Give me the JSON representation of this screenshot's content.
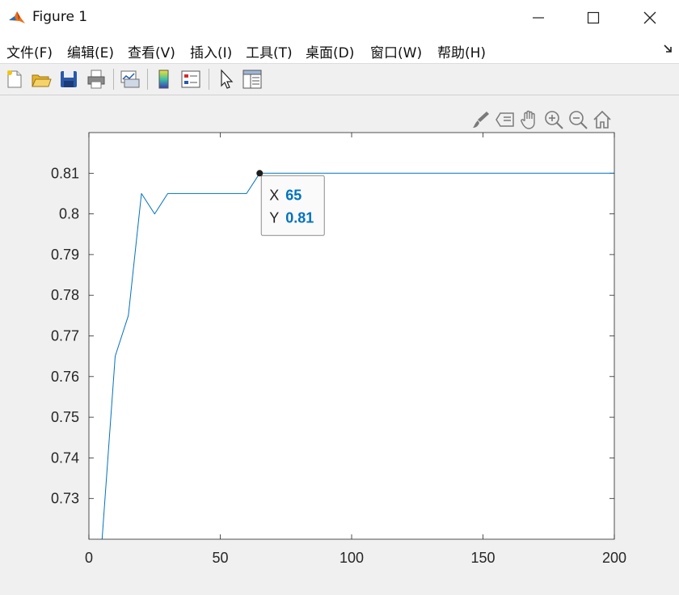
{
  "window": {
    "title": "Figure 1"
  },
  "menu": {
    "items": [
      {
        "label": "文件(F)"
      },
      {
        "label": "编辑(E)"
      },
      {
        "label": "查看(V)"
      },
      {
        "label": "插入(I)"
      },
      {
        "label": "工具(T)"
      },
      {
        "label": "桌面(D)"
      },
      {
        "label": "窗口(W)"
      },
      {
        "label": "帮助(H)"
      }
    ]
  },
  "toolbar": {
    "icons": [
      "new-figure-icon",
      "open-file-icon",
      "save-icon",
      "print-icon",
      "link-plot-icon",
      "insert-colorbar-icon",
      "insert-legend-icon",
      "edit-plot-arrow-icon",
      "property-inspector-icon"
    ]
  },
  "axes_toolbar": {
    "icons": [
      "brush-icon",
      "data-tips-icon",
      "pan-hand-icon",
      "zoom-in-icon",
      "zoom-out-icon",
      "restore-view-home-icon"
    ]
  },
  "datatip": {
    "x_label": "X",
    "x_value": "65",
    "y_label": "Y",
    "y_value": "0.81",
    "x": 65,
    "y": 0.81
  },
  "colors": {
    "line": "#0072bd",
    "datatip_value": "#0072bd",
    "axes_bg": "#ffffff",
    "figure_bg": "#f0f0f0"
  },
  "chart_data": {
    "type": "line",
    "title": "",
    "xlabel": "",
    "ylabel": "",
    "xlim": [
      0,
      200
    ],
    "ylim": [
      0.72,
      0.82
    ],
    "xticks": [
      0,
      50,
      100,
      150,
      200
    ],
    "xtick_labels": [
      "0",
      "50",
      "100",
      "150",
      "200"
    ],
    "yticks": [
      0.73,
      0.74,
      0.75,
      0.76,
      0.77,
      0.78,
      0.79,
      0.8,
      0.81
    ],
    "ytick_labels": [
      "0.73",
      "0.74",
      "0.75",
      "0.76",
      "0.77",
      "0.78",
      "0.79",
      "0.8",
      "0.81"
    ],
    "grid": false,
    "series": [
      {
        "x": [
          5,
          10,
          15,
          20,
          25,
          30,
          35,
          40,
          45,
          50,
          55,
          60,
          65,
          70,
          75,
          80,
          85,
          90,
          95,
          100,
          105,
          110,
          115,
          120,
          125,
          130,
          135,
          140,
          145,
          150,
          155,
          160,
          165,
          170,
          175,
          180,
          185,
          190,
          195,
          200
        ],
        "values": [
          0.72,
          0.765,
          0.775,
          0.805,
          0.8,
          0.805,
          0.805,
          0.805,
          0.805,
          0.805,
          0.805,
          0.805,
          0.81,
          0.81,
          0.81,
          0.81,
          0.81,
          0.81,
          0.81,
          0.81,
          0.81,
          0.81,
          0.81,
          0.81,
          0.81,
          0.81,
          0.81,
          0.81,
          0.81,
          0.81,
          0.81,
          0.81,
          0.81,
          0.81,
          0.81,
          0.81,
          0.81,
          0.81,
          0.81,
          0.81
        ]
      }
    ]
  }
}
